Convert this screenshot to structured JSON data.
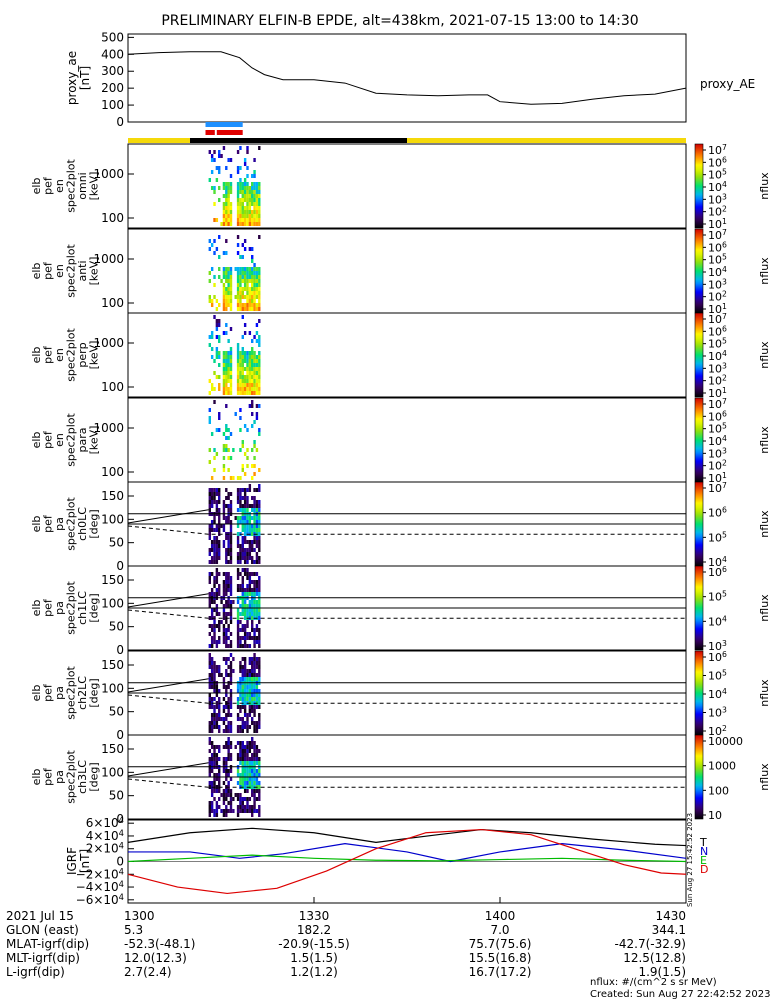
{
  "title": "PRELIMINARY ELFIN-B EPDE, alt=438km, 2021-07-15 13:00 to 14:30",
  "colors": {
    "orbit_yellow": "#f5d90a",
    "orbit_black": "#000000",
    "bar_blue": "#1e90ff",
    "bar_red": "#e00000",
    "comp_N": "#0000cc",
    "comp_E": "#00bb00",
    "comp_D": "#dd0000",
    "comp_T": "#000000"
  },
  "colorbar_label": "nflux",
  "chart_data": [
    {
      "type": "line",
      "panel": "proxy_ae",
      "ylabel": "proxy_ae\n[nT]",
      "legend": "proxy_AE",
      "yticks": [
        "500",
        "400",
        "300",
        "200",
        "100",
        "0"
      ],
      "ylim": [
        0,
        520
      ],
      "xlim": [
        0,
        90
      ],
      "series": [
        {
          "name": "proxy_AE",
          "x": [
            0,
            5,
            10,
            15,
            18,
            20,
            22,
            25,
            30,
            35,
            40,
            45,
            50,
            55,
            58,
            60,
            65,
            70,
            75,
            80,
            85,
            90
          ],
          "y": [
            400,
            410,
            415,
            415,
            380,
            320,
            280,
            250,
            250,
            230,
            170,
            160,
            155,
            160,
            160,
            120,
            105,
            110,
            135,
            155,
            165,
            200
          ]
        }
      ]
    },
    {
      "type": "heatmap",
      "panel": "omni",
      "ylabel": "elb\npef\nen\nspec2plot\nomni\n[keV]",
      "yticks": [
        "1000",
        "100"
      ],
      "cbar_ticks": [
        "10^7",
        "10^6",
        "10^5",
        "10^4",
        "10^3",
        "10^2",
        "10^1"
      ],
      "xlim": [
        0,
        90
      ],
      "time_range_min": [
        13,
        21
      ]
    },
    {
      "type": "heatmap",
      "panel": "anti",
      "ylabel": "elb\npef\nen\nspec2plot\nanti\n[keV]",
      "yticks": [
        "1000",
        "100"
      ],
      "cbar_ticks": [
        "10^7",
        "10^6",
        "10^5",
        "10^4",
        "10^3",
        "10^2",
        "10^1"
      ],
      "xlim": [
        0,
        90
      ],
      "time_range_min": [
        13,
        21
      ]
    },
    {
      "type": "heatmap",
      "panel": "perp",
      "ylabel": "elb\npef\nen\nspec2plot\nperp\n[keV]",
      "yticks": [
        "1000",
        "100"
      ],
      "cbar_ticks": [
        "10^7",
        "10^6",
        "10^5",
        "10^4",
        "10^3",
        "10^2",
        "10^1"
      ],
      "xlim": [
        0,
        90
      ],
      "time_range_min": [
        13,
        21
      ]
    },
    {
      "type": "heatmap",
      "panel": "para",
      "ylabel": "elb\npef\nen\nspec2plot\npara\n[keV]",
      "yticks": [
        "1000",
        "100"
      ],
      "cbar_ticks": [
        "10^7",
        "10^6",
        "10^5",
        "10^4",
        "10^3",
        "10^2",
        "10^1"
      ],
      "xlim": [
        0,
        90
      ],
      "time_range_min": [
        13,
        21
      ]
    },
    {
      "type": "heatmap",
      "panel": "ch0LC",
      "ylabel": "elb\npef\npa\nspec2plot\nch0LC\n[deg]",
      "yticks": [
        "150",
        "100",
        "50",
        "0"
      ],
      "cbar_ticks": [
        "10^7",
        "10^6",
        "10^5",
        "10^4"
      ],
      "xlim": [
        0,
        90
      ],
      "time_range_min": [
        13,
        21
      ]
    },
    {
      "type": "heatmap",
      "panel": "ch1LC",
      "ylabel": "elb\npef\npa\nspec2plot\nch1LC\n[deg]",
      "yticks": [
        "150",
        "100",
        "50",
        "0"
      ],
      "cbar_ticks": [
        "10^6",
        "10^5",
        "10^4",
        "10^3"
      ],
      "xlim": [
        0,
        90
      ],
      "time_range_min": [
        13,
        21
      ]
    },
    {
      "type": "heatmap",
      "panel": "ch2LC",
      "ylabel": "elb\npef\npa\nspec2plot\nch2LC\n[deg]",
      "yticks": [
        "150",
        "100",
        "50",
        "0"
      ],
      "cbar_ticks": [
        "10^6",
        "10^5",
        "10^4",
        "10^3",
        "10^2"
      ],
      "xlim": [
        0,
        90
      ],
      "time_range_min": [
        13,
        21
      ]
    },
    {
      "type": "heatmap",
      "panel": "ch3LC",
      "ylabel": "elb\npef\npa\nspec2plot\nch3LC\n[deg]",
      "yticks": [
        "150",
        "100",
        "50",
        "0"
      ],
      "cbar_ticks": [
        "10000",
        "1000",
        "100",
        "10"
      ],
      "xlim": [
        0,
        90
      ],
      "time_range_min": [
        13,
        21
      ]
    },
    {
      "type": "line",
      "panel": "IGRF",
      "ylabel": "IGRF\n[nT]",
      "yticks": [
        "6×10^4",
        "4×10^4",
        "2×10^4",
        "0",
        "−2×10^4",
        "−4×10^4",
        "−6×10^4"
      ],
      "ylim": [
        -65000,
        65000
      ],
      "xlim": [
        0,
        90
      ],
      "legend_letters": [
        "T",
        "N",
        "E",
        "D"
      ],
      "series": [
        {
          "name": "T",
          "x": [
            0,
            10,
            20,
            30,
            40,
            50,
            57,
            65,
            75,
            85,
            90
          ],
          "y": [
            30000,
            45000,
            52000,
            45000,
            30000,
            42000,
            50000,
            45000,
            35000,
            27000,
            25000
          ]
        },
        {
          "name": "N",
          "x": [
            0,
            10,
            18,
            25,
            35,
            45,
            52,
            60,
            70,
            80,
            90
          ],
          "y": [
            15000,
            15000,
            5000,
            12000,
            28000,
            15000,
            0,
            15000,
            28000,
            18000,
            5000
          ]
        },
        {
          "name": "E",
          "x": [
            0,
            10,
            20,
            30,
            40,
            50,
            60,
            70,
            80,
            90
          ],
          "y": [
            0,
            5000,
            10000,
            5000,
            2000,
            1000,
            3000,
            5000,
            2000,
            0
          ]
        },
        {
          "name": "D",
          "x": [
            0,
            8,
            16,
            24,
            32,
            40,
            48,
            57,
            65,
            72,
            80,
            86,
            90
          ],
          "y": [
            -20000,
            -40000,
            -50000,
            -42000,
            -15000,
            20000,
            45000,
            50000,
            42000,
            20000,
            -5000,
            -18000,
            -20000
          ]
        }
      ]
    }
  ],
  "x_axis": {
    "rows": [
      {
        "label": "2021 Jul 15",
        "values": [
          "1300",
          "1330",
          "1400",
          "1430"
        ]
      },
      {
        "label": "GLON (east)",
        "values": [
          "5.3",
          "182.2",
          "7.0",
          "344.1"
        ]
      },
      {
        "label": "MLAT-igrf(dip)",
        "values": [
          "-52.3(-48.1)",
          "-20.9(-15.5)",
          "75.7(75.6)",
          "-42.7(-32.9)"
        ]
      },
      {
        "label": "MLT-igrf(dip)",
        "values": [
          "12.0(12.3)",
          "1.5(1.5)",
          "15.5(16.8)",
          "12.5(12.8)"
        ]
      },
      {
        "label": "L-igrf(dip)",
        "values": [
          "2.7(2.4)",
          "1.2(1.2)",
          "16.7(17.2)",
          "1.9(1.5)"
        ]
      }
    ]
  },
  "footer": {
    "units": "nflux: #/(cm^2 s sr MeV)",
    "created": "Created: Sun Aug 27 22:42:52 2023",
    "side_stamp": "Sun Aug 27 15:42:52 2023"
  }
}
